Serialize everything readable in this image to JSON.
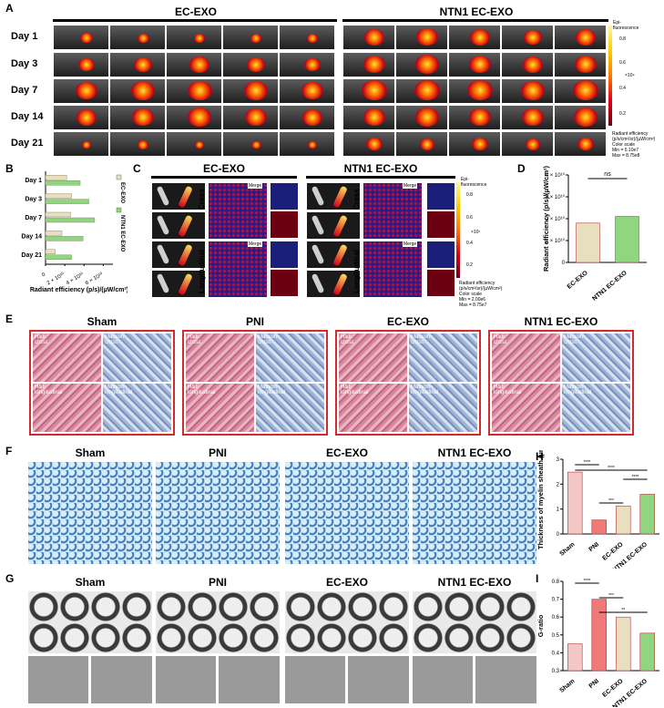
{
  "panels": [
    "A",
    "B",
    "C",
    "D",
    "E",
    "F",
    "G",
    "H",
    "I"
  ],
  "panelA": {
    "groups": [
      "EC-EXO",
      "NTN1 EC-EXO"
    ],
    "rows": [
      "Day 1",
      "Day 3",
      "Day 7",
      "Day 14",
      "Day 21"
    ],
    "colorbar": {
      "title": "Epi-\nfluorescence",
      "ticks": [
        "0.8",
        "0.6",
        "0.4",
        "0.2"
      ],
      "unit": "×10⁹",
      "footer": "Radiant efficiency\n(p/s/cm²/sr)/(µW/cm²)\nColor scale\nMin = 5.10e7\nMax = 8.75e8"
    }
  },
  "panelC": {
    "groups": [
      "EC-EXO",
      "NTN1 EC-EXO"
    ],
    "sections": [
      "Cross",
      "Longitudinal"
    ],
    "merge": "Merge",
    "colorbar": {
      "title": "Epi-\nfluorescence",
      "ticks": [
        "0.8",
        "0.6",
        "0.4",
        "0.2"
      ],
      "unit": "×10⁷",
      "footer": "Radiant efficiency\n(p/s/cm²/sr)/(µW/cm²)\nColor scale\nMin = 2.00e6\nMax = 8.75e7"
    }
  },
  "panelE": {
    "groups": [
      "Sham",
      "PNI",
      "EC-EXO",
      "NTN1 EC-EXO"
    ],
    "stains": [
      "H&E\ncross",
      "Masson\ncross",
      "H&E\nlongitudinal",
      "Masson\nlongitudinal"
    ]
  },
  "panelF": {
    "groups": [
      "Sham",
      "PNI",
      "EC-EXO",
      "NTN1 EC-EXO"
    ]
  },
  "panelG": {
    "groups": [
      "Sham",
      "PNI",
      "EC-EXO",
      "NTN1 EC-EXO"
    ]
  },
  "colors": {
    "ec_exo": "#e8dfbf",
    "ntn1": "#8fd67f",
    "sham": "#f4c7c7",
    "pni": "#f07a7a",
    "border": "#d32b2b"
  },
  "chart_data": [
    {
      "panel": "B",
      "type": "bar",
      "orientation": "horizontal",
      "categories": [
        "Day 1",
        "Day 3",
        "Day 7",
        "Day 14",
        "Day 21"
      ],
      "series": [
        {
          "name": "EC-EXO",
          "values": [
            22000000000.0,
            27000000000.0,
            26000000000.0,
            17000000000.0,
            10000000000.0
          ]
        },
        {
          "name": "NTN1 EC-EXO",
          "values": [
            36000000000.0,
            45000000000.0,
            51000000000.0,
            39000000000.0,
            27000000000.0
          ]
        }
      ],
      "xlabel": "Radiant efficiency\n(p/s)/(µW/cm²)",
      "xticks": [
        "0",
        "2 × 10¹⁰",
        "4 × 10¹⁰",
        "6 × 10¹⁰"
      ],
      "xlim": [
        0,
        70000000000.0
      ],
      "legend": "top-right"
    },
    {
      "panel": "D",
      "type": "bar",
      "categories": [
        "EC-EXO",
        "NTN1\nEC-EXO"
      ],
      "values": [
        18000000000.0,
        21000000000.0
      ],
      "ylabel": "Radiant efficiency\n(p/s)/(µW/cm²)",
      "yticks": [
        "0",
        "1 × 10¹⁰",
        "2 × 10¹⁰",
        "3 × 10¹⁰",
        "4 × 10¹⁰"
      ],
      "ylim": [
        0,
        40000000000.0
      ],
      "annotation": "ns"
    },
    {
      "panel": "H",
      "type": "bar",
      "categories": [
        "Sham",
        "PNI",
        "EC-EXO",
        "NTN1\nEC-EXO"
      ],
      "values": [
        2.65,
        0.6,
        1.2,
        1.7
      ],
      "ylabel": "Thickness of\nmyelin sheath (µm)",
      "yticks": [
        "0",
        "1",
        "2",
        "3"
      ],
      "ylim": [
        0,
        3.2
      ],
      "annotations": [
        "****",
        "****",
        "***",
        "****"
      ]
    },
    {
      "panel": "I",
      "type": "bar",
      "categories": [
        "Sham",
        "PNI",
        "EC-EXO",
        "NTN1\nEC-EXO"
      ],
      "values": [
        0.45,
        0.7,
        0.6,
        0.51
      ],
      "ylabel": "G-ratio",
      "yticks": [
        "0.3",
        "0.4",
        "0.5",
        "0.6",
        "0.7",
        "0.8"
      ],
      "ylim": [
        0.3,
        0.8
      ],
      "annotations": [
        "****",
        "***",
        "**"
      ]
    }
  ]
}
